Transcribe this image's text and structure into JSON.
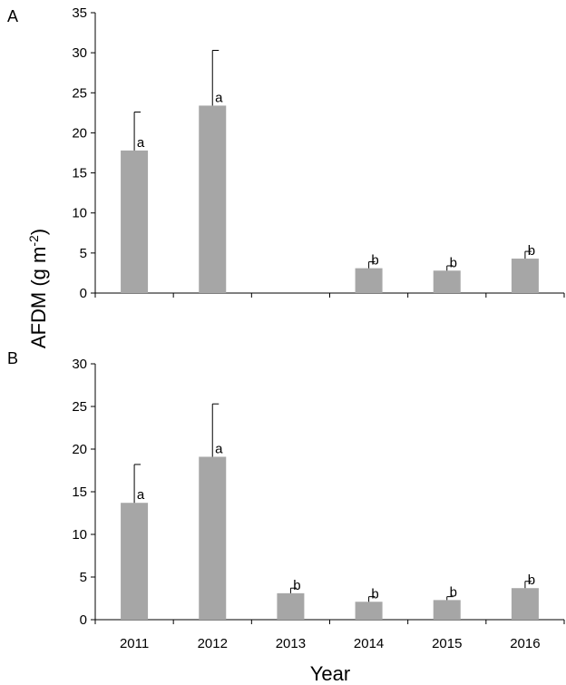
{
  "chart_data": [
    {
      "type": "bar",
      "panel_label": "A",
      "categories": [
        "2011",
        "2012",
        "2013",
        "2014",
        "2015",
        "2016"
      ],
      "values": [
        17.8,
        23.4,
        null,
        3.1,
        2.8,
        4.3
      ],
      "errors": [
        4.8,
        6.9,
        null,
        0.8,
        0.6,
        0.9
      ],
      "significance": [
        "a",
        "a",
        "",
        "b",
        "b",
        "b"
      ],
      "ylim": [
        0,
        35
      ],
      "yticks": [
        0,
        5,
        10,
        15,
        20,
        25,
        30,
        35
      ],
      "bar_color": "#a6a6a6"
    },
    {
      "type": "bar",
      "panel_label": "B",
      "categories": [
        "2011",
        "2012",
        "2013",
        "2014",
        "2015",
        "2016"
      ],
      "values": [
        13.7,
        19.1,
        3.1,
        2.1,
        2.3,
        3.7
      ],
      "errors": [
        4.5,
        6.2,
        0.6,
        0.6,
        0.4,
        0.8
      ],
      "significance": [
        "a",
        "a",
        "b",
        "b",
        "b",
        "b"
      ],
      "ylim": [
        0,
        30
      ],
      "yticks": [
        0,
        5,
        10,
        15,
        20,
        25,
        30
      ],
      "bar_color": "#a6a6a6"
    }
  ],
  "ylabel_main": "AFDM (g m",
  "ylabel_sup": "-2",
  "ylabel_end": ")",
  "xlabel": "Year",
  "x_tick_labels": [
    "2011",
    "2012",
    "2013",
    "2014",
    "2015",
    "2016"
  ]
}
